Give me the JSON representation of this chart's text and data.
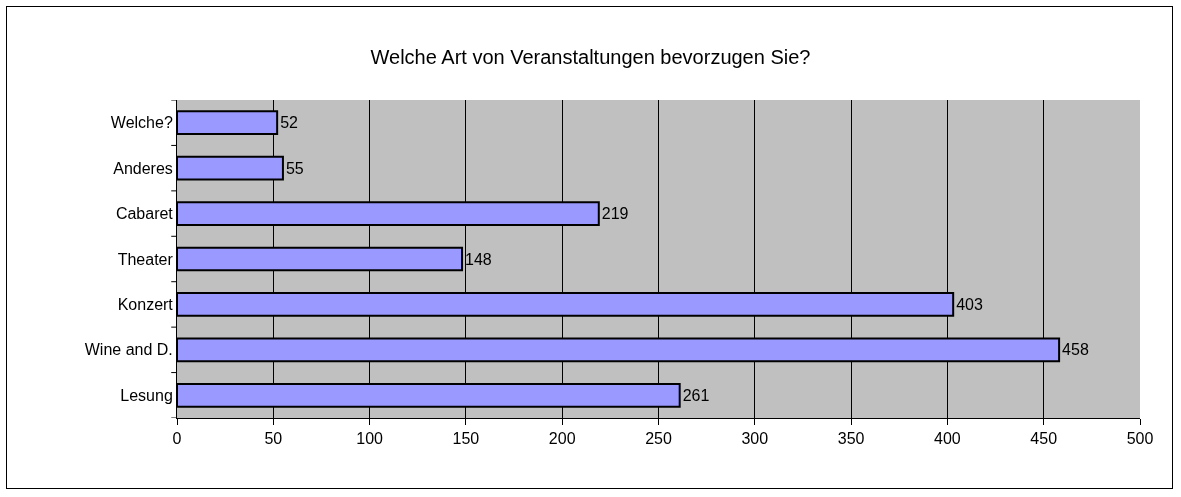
{
  "chart_data": {
    "type": "bar",
    "title": "Welche Art von Veranstaltungen bevorzugen Sie?",
    "orientation": "horizontal",
    "categories": [
      "Welche?",
      "Anderes",
      "Cabaret",
      "Theater",
      "Konzert",
      "Wine and D.",
      "Lesung"
    ],
    "values": [
      52,
      55,
      219,
      148,
      403,
      458,
      261
    ],
    "color": "#9999ff",
    "xlim": [
      0,
      500
    ],
    "xticks": [
      0,
      50,
      100,
      150,
      200,
      250,
      300,
      350,
      400,
      450,
      500
    ],
    "grid": "x",
    "data_labels": true,
    "legend": false
  }
}
